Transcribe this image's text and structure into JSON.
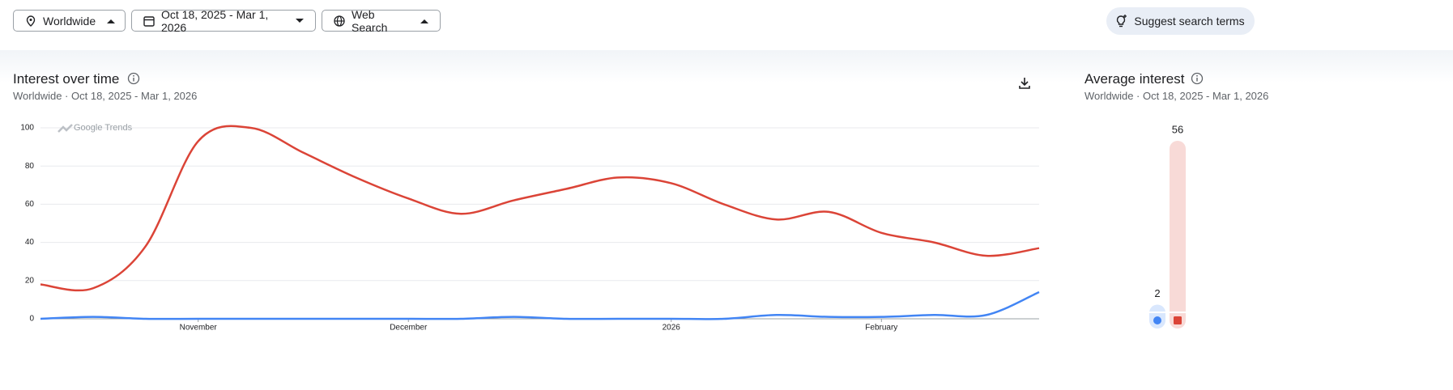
{
  "toolbar": {
    "location": "Worldwide",
    "date_range": "Oct 18, 2025 - Mar 1, 2026",
    "property": "Web Search",
    "suggest": "Suggest search terms"
  },
  "chart_data": [
    {
      "type": "line",
      "title": "Interest over time",
      "subtitle": "Worldwide · Oct 18, 2025 - Mar 1, 2026",
      "watermark": "Google Trends",
      "categories": [
        null,
        null,
        null,
        "November",
        null,
        null,
        null,
        "December",
        null,
        null,
        null,
        null,
        "2026",
        null,
        null,
        null,
        "February",
        null,
        null,
        null
      ],
      "series": [
        {
          "color": "#4285f4",
          "values": [
            0,
            1,
            0,
            0,
            0,
            0,
            0,
            0,
            0,
            1,
            0,
            0,
            0,
            0,
            2,
            1,
            1,
            2,
            2,
            14
          ]
        },
        {
          "color": "#db4437",
          "values": [
            18,
            16,
            38,
            93,
            100,
            87,
            74,
            63,
            55,
            62,
            68,
            74,
            71,
            60,
            52,
            56,
            45,
            40,
            33,
            37
          ]
        }
      ],
      "ylim": [
        0,
        100
      ],
      "yticks": [
        0,
        20,
        40,
        60,
        80,
        100
      ],
      "grid": true
    },
    {
      "type": "bar",
      "title": "Average interest",
      "subtitle": "Worldwide · Oct 18, 2025 - Mar 1, 2026",
      "values": [
        2,
        56
      ],
      "colors": [
        "#4285f4",
        "#db4437"
      ],
      "ylim": [
        0,
        100
      ]
    }
  ]
}
